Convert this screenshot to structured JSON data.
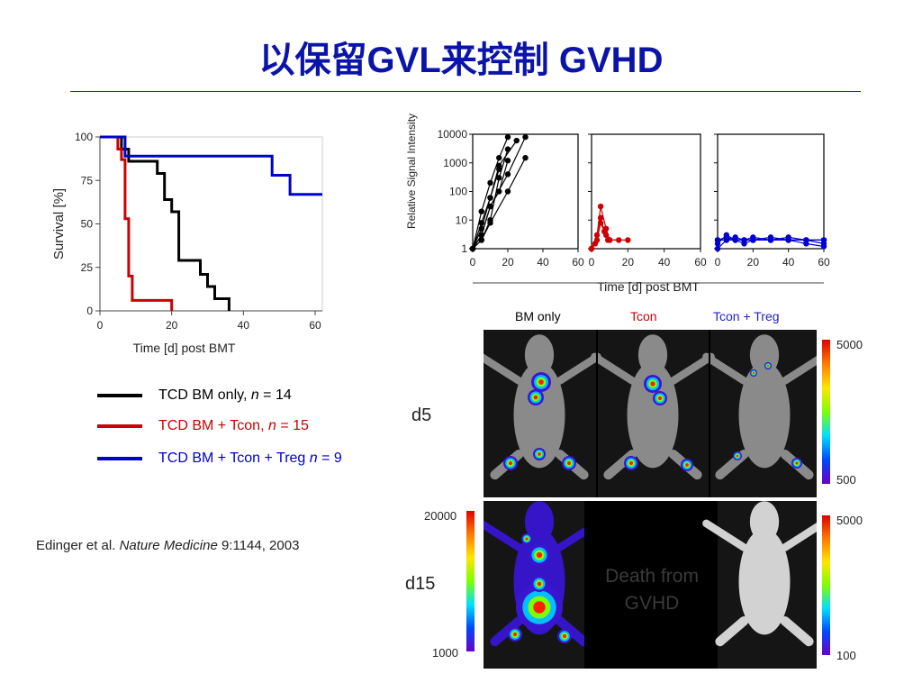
{
  "title": "以保留GVL来控制 GVHD",
  "chart_data": [
    {
      "type": "line",
      "xlabel": "Time [d] post BMT",
      "ylabel": "Survival [%]",
      "xlim": [
        0,
        62
      ],
      "ylim": [
        0,
        100
      ],
      "xticks": [
        "0",
        "20",
        "40",
        "60"
      ],
      "yticks": [
        "0",
        "25",
        "50",
        "75",
        "100"
      ],
      "series": [
        {
          "name": "TCD BM only, n = 14",
          "color": "#000000",
          "x": [
            0,
            6,
            6,
            8,
            8,
            16,
            16,
            18,
            18,
            20,
            20,
            22,
            22,
            28,
            28,
            30,
            30,
            32,
            32,
            36,
            36
          ],
          "y": [
            100,
            100,
            93,
            93,
            86,
            86,
            79,
            79,
            64,
            64,
            57,
            57,
            29,
            29,
            21,
            21,
            14,
            14,
            7,
            7,
            0
          ]
        },
        {
          "name": "TCD BM + Tcon, n = 15",
          "color": "#cc0000",
          "x": [
            0,
            5,
            5,
            6,
            6,
            7,
            7,
            8,
            8,
            9,
            9,
            20,
            20
          ],
          "y": [
            100,
            100,
            93,
            93,
            87,
            87,
            53,
            53,
            20,
            20,
            6,
            6,
            0
          ]
        },
        {
          "name": "TCD BM + Tcon + Treg n = 9",
          "color": "#0000cc",
          "x": [
            0,
            7,
            7,
            48,
            48,
            53,
            53,
            62
          ],
          "y": [
            100,
            100,
            89,
            89,
            78,
            78,
            67,
            67
          ]
        }
      ],
      "grid": false,
      "legend": "below"
    },
    {
      "type": "line",
      "ylabel": "Relative Signal Intensity",
      "xlabel": "Time [d] post BMT",
      "yscale": "log",
      "ylim": [
        1,
        10000
      ],
      "xlim": [
        0,
        60
      ],
      "yticks": [
        "10000",
        "1000",
        "100",
        "10",
        "1"
      ],
      "xticks": [
        "0",
        "20",
        "40",
        "60"
      ],
      "panels": [
        {
          "name": "BM only",
          "color": "#000000",
          "series": [
            {
              "x": [
                0,
                5,
                10,
                20,
                30
              ],
              "y": [
                1,
                3,
                30,
                400,
                8000
              ]
            },
            {
              "x": [
                0,
                5,
                10,
                15,
                20
              ],
              "y": [
                1,
                2,
                10,
                300,
                3000
              ]
            },
            {
              "x": [
                0,
                5,
                10,
                15,
                25
              ],
              "y": [
                1,
                5,
                60,
                800,
                6000
              ]
            },
            {
              "x": [
                0,
                5,
                10,
                15,
                20
              ],
              "y": [
                1,
                20,
                200,
                1500,
                8000
              ]
            },
            {
              "x": [
                0,
                5,
                10,
                20,
                30
              ],
              "y": [
                1,
                2,
                8,
                100,
                1500
              ]
            },
            {
              "x": [
                0,
                5,
                10,
                15,
                20
              ],
              "y": [
                1,
                3,
                30,
                100,
                1200
              ]
            },
            {
              "x": [
                0,
                5,
                10,
                15
              ],
              "y": [
                1,
                8,
                60,
                600
              ]
            }
          ]
        },
        {
          "name": "Tcon",
          "color": "#cc0000",
          "series": [
            {
              "x": [
                0,
                3,
                5,
                8,
                10,
                15
              ],
              "y": [
                1,
                3,
                30,
                5,
                2,
                2
              ]
            },
            {
              "x": [
                0,
                3,
                5,
                8,
                10,
                20
              ],
              "y": [
                1,
                2,
                8,
                3,
                2,
                2
              ]
            },
            {
              "x": [
                0,
                2,
                5,
                7,
                9
              ],
              "y": [
                1,
                1.5,
                12,
                4,
                2
              ]
            }
          ]
        },
        {
          "name": "Tcon + Treg",
          "color": "#0000cc",
          "series": [
            {
              "x": [
                0,
                5,
                10,
                15,
                20,
                30,
                40,
                50,
                60
              ],
              "y": [
                1.5,
                3,
                2,
                2,
                2,
                2,
                2,
                2,
                1.5
              ]
            },
            {
              "x": [
                0,
                5,
                10,
                15,
                20,
                30,
                40,
                50,
                60
              ],
              "y": [
                2,
                2,
                2.5,
                2,
                2,
                2.5,
                2,
                2,
                2
              ]
            },
            {
              "x": [
                0,
                5,
                10,
                15,
                20,
                30,
                40,
                50,
                60
              ],
              "y": [
                1,
                2,
                2,
                1.5,
                2,
                2,
                2,
                1.5,
                1.2
              ]
            },
            {
              "x": [
                0,
                5,
                10,
                15,
                20,
                30,
                40,
                50,
                60
              ],
              "y": [
                2,
                2.5,
                2,
                2,
                2.5,
                2,
                2.5,
                2,
                2
              ]
            }
          ]
        }
      ]
    }
  ],
  "legend": {
    "black": {
      "prefix": "TCD BM only, ",
      "n": "n",
      "suffix": " = 14"
    },
    "red": {
      "prefix": "TCD BM + Tcon, ",
      "n": "n",
      "suffix": " = 15"
    },
    "blue": {
      "prefix": "TCD BM + Tcon + Treg ",
      "n": "n",
      "suffix": " = 9"
    }
  },
  "citation": {
    "authors": "Edinger et al. ",
    "journal": "Nature Medicine",
    "ref": " 9:1144, 2003"
  },
  "images": {
    "group_labels": [
      "BM only",
      "Tcon",
      "Tcon + Treg"
    ],
    "group_colors": [
      "#111111",
      "#cc0000",
      "#2222cc"
    ],
    "row_labels": [
      "d5",
      "d15"
    ],
    "death_text_1": "Death from",
    "death_text_2": "GVHD",
    "scale_d5": {
      "max": "5000",
      "min": "500"
    },
    "scale_d15_left": {
      "max": "20000",
      "min": "1000"
    },
    "scale_d15_right": {
      "max": "5000",
      "min": "100"
    }
  }
}
